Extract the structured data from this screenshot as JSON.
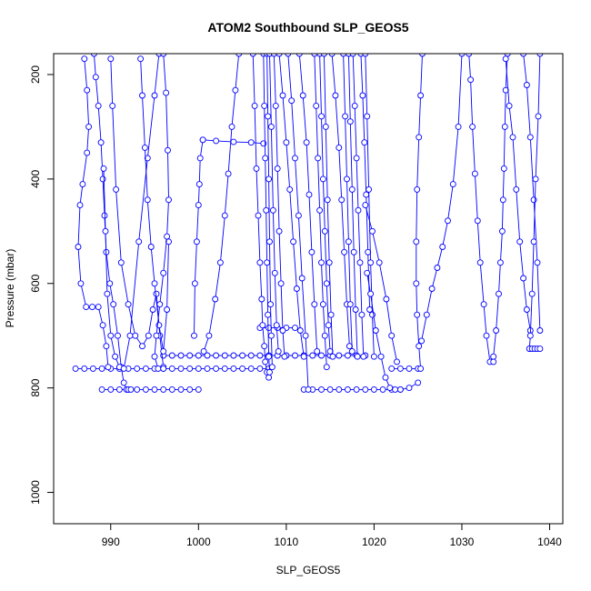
{
  "chart_data": {
    "type": "line",
    "title": "ATOM2 Southbound SLP_GEOS5",
    "xlabel": "SLP_GEOS5",
    "ylabel": "Pressure (mbar)",
    "xlim": [
      983.5,
      1041.5
    ],
    "ylim": [
      1060,
      160
    ],
    "y_reversed": true,
    "x_ticks": [
      990,
      1000,
      1010,
      1020,
      1030,
      1040
    ],
    "y_ticks": [
      200,
      400,
      600,
      800,
      1000
    ],
    "series_color": "#0000ff",
    "marker": "open-circle",
    "line_style": "lines-with-points",
    "grid": false,
    "legend": "none",
    "series": [
      {
        "x": [
          986,
          987,
          988,
          989,
          990,
          991,
          992,
          993,
          994,
          995,
          996,
          997,
          998,
          999,
          1000,
          1001,
          1002,
          1003,
          1004,
          1005,
          1006,
          1007,
          1008
        ],
        "y": [
          763,
          763,
          763,
          763,
          763,
          763,
          763,
          763,
          763,
          763,
          763,
          763,
          763,
          763,
          763,
          763,
          763,
          763,
          763,
          763,
          763,
          763,
          763
        ]
      },
      {
        "x": [
          989,
          990,
          991,
          992,
          993,
          994,
          995,
          996,
          997,
          998,
          999,
          1000
        ],
        "y": [
          803,
          803,
          803,
          803,
          803,
          803,
          803,
          803,
          803,
          803,
          803,
          803
        ]
      },
      {
        "x": [
          996,
          997,
          998,
          999,
          1000,
          1001,
          1002,
          1003,
          1004,
          1005,
          1006,
          1007,
          1008,
          1009,
          1010,
          1011,
          1012,
          1013,
          1014,
          1015,
          1016,
          1017,
          1018,
          1019
        ],
        "y": [
          738,
          738,
          738,
          738,
          738,
          738,
          738,
          738,
          738,
          738,
          738,
          738,
          738,
          738,
          738,
          738,
          738,
          738,
          738,
          738,
          738,
          738,
          738,
          738
        ]
      },
      {
        "x": [
          1012,
          1013,
          1014,
          1015,
          1016,
          1017,
          1018,
          1019,
          1020,
          1021,
          1022,
          1023,
          1024,
          1025
        ],
        "y": [
          803,
          803,
          803,
          803,
          803,
          803,
          803,
          803,
          803,
          803,
          803,
          803,
          800,
          790
        ]
      },
      {
        "x": [
          1022,
          1023,
          1024,
          1025
        ],
        "y": [
          763,
          763,
          763,
          763
        ]
      },
      {
        "x": [
          1007,
          1008,
          1009,
          1010,
          1011
        ],
        "y": [
          685,
          685,
          685,
          685,
          685
        ]
      },
      {
        "x": [
          987.0,
          987.3,
          987.5,
          987.3,
          986.8,
          986.5,
          986.3,
          986.6,
          987.2,
          987.9,
          988.6,
          989.1,
          989.5,
          989.7
        ],
        "y": [
          170,
          230,
          300,
          350,
          410,
          450,
          530,
          600,
          645,
          645,
          645,
          680,
          720,
          760
        ]
      },
      {
        "x": [
          988.1,
          988.3,
          988.6,
          988.9,
          989.1,
          989.3,
          989.5,
          989.9,
          990.3,
          990.8,
          991.2,
          991.5,
          991.8,
          992.0,
          992.3
        ],
        "y": [
          160,
          205,
          260,
          330,
          400,
          470,
          540,
          600,
          640,
          700,
          760,
          790,
          803,
          803,
          803
        ]
      },
      {
        "x": [
          989.2,
          989.4,
          989.6,
          990.0,
          990.5,
          991.0,
          991.5,
          992.2,
          993.2,
          994.2,
          995.0,
          995.5
        ],
        "y": [
          380,
          500,
          620,
          700,
          740,
          760,
          763,
          700,
          520,
          360,
          240,
          160
        ]
      },
      {
        "x": [
          990.0,
          990.2,
          990.6,
          991.2,
          992.0,
          992.8,
          993.6,
          994.3,
          994.8,
          995.2,
          995.6,
          996.0
        ],
        "y": [
          170,
          260,
          420,
          560,
          640,
          700,
          720,
          700,
          650,
          620,
          700,
          760
        ]
      },
      {
        "x": [
          993.4,
          993.6,
          993.9,
          994.2,
          994.6,
          995.0,
          995.5,
          996.0,
          996.4,
          996.6
        ],
        "y": [
          170,
          240,
          340,
          440,
          530,
          600,
          680,
          730,
          650,
          520
        ]
      },
      {
        "x": [
          996.0,
          996.3,
          996.5,
          996.6,
          996.4,
          996.0,
          995.6,
          995.2,
          995.0,
          995.4,
          996.0
        ],
        "y": [
          160,
          235,
          345,
          440,
          510,
          580,
          640,
          700,
          740,
          763,
          763
        ]
      },
      {
        "x": [
          999.5,
          999.6,
          999.8,
          1000.0,
          1000.1,
          1000.2,
          1000.5
        ],
        "y": [
          700,
          600,
          520,
          450,
          410,
          360,
          325
        ]
      },
      {
        "x": [
          1000.5,
          1002.0,
          1004.0,
          1006.0,
          1007.4
        ],
        "y": [
          325,
          327,
          329,
          330,
          332
        ]
      },
      {
        "x": [
          1000.6,
          1001.2,
          1001.9,
          1002.5,
          1003.0,
          1003.4,
          1003.8,
          1004.2,
          1004.6
        ],
        "y": [
          730,
          700,
          630,
          560,
          470,
          390,
          300,
          230,
          160
        ]
      },
      {
        "x": [
          1006.2,
          1006.4,
          1006.6,
          1006.8,
          1007.0,
          1007.2,
          1007.3,
          1007.5,
          1007.6,
          1007.8,
          1008.0
        ],
        "y": [
          160,
          260,
          380,
          470,
          560,
          630,
          680,
          720,
          750,
          770,
          780
        ]
      },
      {
        "x": [
          1007.4,
          1007.5,
          1007.6,
          1007.7,
          1007.8,
          1007.9,
          1008.0,
          1008.1
        ],
        "y": [
          160,
          260,
          360,
          460,
          560,
          660,
          740,
          770
        ]
      },
      {
        "x": [
          1007.8,
          1007.9,
          1008.0,
          1008.1,
          1008.2,
          1008.3,
          1008.4
        ],
        "y": [
          160,
          280,
          400,
          520,
          640,
          700,
          760
        ]
      },
      {
        "x": [
          1008.1,
          1008.3,
          1008.5,
          1008.7,
          1008.9,
          1009.1
        ],
        "y": [
          160,
          300,
          460,
          580,
          680,
          730
        ]
      },
      {
        "x": [
          1008.6,
          1008.8,
          1009.0,
          1009.2,
          1009.4,
          1009.6,
          1009.8
        ],
        "y": [
          160,
          260,
          380,
          500,
          600,
          690,
          740
        ]
      },
      {
        "x": [
          1009.2,
          1009.6,
          1010.0,
          1010.4,
          1010.8,
          1011.2,
          1011.6,
          1012.0
        ],
        "y": [
          160,
          240,
          330,
          420,
          520,
          610,
          690,
          740
        ]
      },
      {
        "x": [
          1010.2,
          1010.6,
          1011.0,
          1011.4,
          1011.8,
          1012.2,
          1012.5
        ],
        "y": [
          160,
          250,
          360,
          470,
          590,
          700,
          803
        ]
      },
      {
        "x": [
          1011.5,
          1011.9,
          1012.3,
          1012.6,
          1012.9,
          1013.2,
          1013.5
        ],
        "y": [
          160,
          240,
          330,
          430,
          540,
          640,
          730
        ]
      },
      {
        "x": [
          1013.2,
          1013.4,
          1013.6,
          1013.8,
          1014.0,
          1014.2,
          1014.4,
          1014.6
        ],
        "y": [
          160,
          260,
          360,
          460,
          560,
          640,
          700,
          760
        ]
      },
      {
        "x": [
          1013.8,
          1014.0,
          1014.2,
          1014.4,
          1014.6,
          1014.8,
          1015.0
        ],
        "y": [
          160,
          280,
          400,
          500,
          600,
          680,
          730
        ]
      },
      {
        "x": [
          1014.3,
          1014.5,
          1014.7,
          1014.9,
          1015.1,
          1015.3
        ],
        "y": [
          160,
          300,
          440,
          560,
          660,
          740
        ]
      },
      {
        "x": [
          1015.2,
          1015.6,
          1016.0,
          1016.3,
          1016.6,
          1016.9,
          1017.2
        ],
        "y": [
          160,
          240,
          340,
          440,
          540,
          640,
          720
        ]
      },
      {
        "x": [
          1016.5,
          1016.7,
          1016.9,
          1017.1,
          1017.3,
          1017.5
        ],
        "y": [
          160,
          280,
          400,
          520,
          640,
          730
        ]
      },
      {
        "x": [
          1017.1,
          1017.3,
          1017.5,
          1017.7,
          1017.9,
          1018.1
        ],
        "y": [
          160,
          290,
          420,
          540,
          650,
          740
        ]
      },
      {
        "x": [
          1017.6,
          1017.8,
          1018.0,
          1018.2,
          1018.4,
          1018.6,
          1018.8
        ],
        "y": [
          160,
          260,
          360,
          460,
          560,
          660,
          740
        ]
      },
      {
        "x": [
          1018.5,
          1018.7,
          1018.9,
          1019.1,
          1019.3,
          1019.5
        ],
        "y": [
          160,
          240,
          330,
          430,
          540,
          650
        ]
      },
      {
        "x": [
          1019.0,
          1019.2,
          1019.4,
          1019.6,
          1019.8,
          1020.0
        ],
        "y": [
          160,
          280,
          420,
          560,
          660,
          740
        ]
      },
      {
        "x": [
          1019.2,
          1019.6,
          1020.2,
          1020.8,
          1021.3,
          1021.8,
          1022.4,
          1023.0
        ],
        "y": [
          580,
          620,
          690,
          740,
          780,
          800,
          803,
          803
        ]
      },
      {
        "x": [
          1019.0,
          1019.8,
          1020.6,
          1021.4,
          1022.0,
          1022.6
        ],
        "y": [
          450,
          500,
          560,
          630,
          700,
          750
        ]
      },
      {
        "x": [
          1025.5,
          1025.3,
          1025.1,
          1024.9,
          1024.8,
          1024.8,
          1024.9,
          1025.1,
          1025.3
        ],
        "y": [
          160,
          240,
          320,
          420,
          520,
          600,
          660,
          720,
          763
        ]
      },
      {
        "x": [
          1025.4,
          1026.0,
          1026.6,
          1027.2,
          1027.8,
          1028.4,
          1029.0,
          1029.6,
          1030.0
        ],
        "y": [
          710,
          660,
          610,
          570,
          530,
          480,
          410,
          300,
          160
        ]
      },
      {
        "x": [
          1030.8,
          1031.0,
          1031.2,
          1031.5,
          1031.8,
          1032.1,
          1032.5,
          1032.8,
          1033.2,
          1033.6
        ],
        "y": [
          160,
          210,
          300,
          390,
          480,
          560,
          640,
          700,
          750,
          750
        ]
      },
      {
        "x": [
          1033.6,
          1033.9,
          1034.2,
          1034.4,
          1034.6,
          1034.7,
          1034.8,
          1034.9,
          1035.0,
          1035.2
        ],
        "y": [
          740,
          690,
          620,
          560,
          500,
          440,
          380,
          300,
          230,
          160
        ]
      },
      {
        "x": [
          1035.0,
          1035.4,
          1035.8,
          1036.2,
          1036.6,
          1037.0,
          1037.4,
          1037.8
        ],
        "y": [
          170,
          260,
          320,
          420,
          520,
          590,
          650,
          690
        ]
      },
      {
        "x": [
          1037.0,
          1037.4,
          1037.8,
          1038.2,
          1038.6,
          1038.9
        ],
        "y": [
          160,
          220,
          320,
          440,
          560,
          690
        ]
      },
      {
        "x": [
          1038.9,
          1038.7,
          1038.4,
          1038.2,
          1038.0,
          1037.8,
          1037.7
        ],
        "y": [
          160,
          280,
          400,
          520,
          620,
          700,
          725
        ]
      },
      {
        "x": [
          1037.7,
          1038.0,
          1038.3,
          1038.6,
          1038.9
        ],
        "y": [
          725,
          725,
          725,
          725,
          725
        ]
      }
    ]
  }
}
